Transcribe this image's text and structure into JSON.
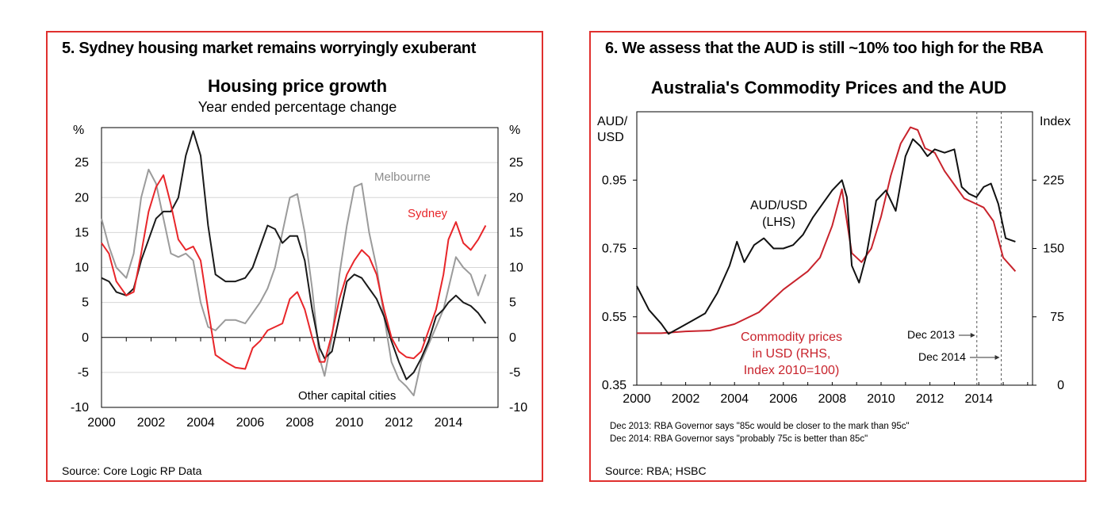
{
  "charts": [
    {
      "panel_title": "5. Sydney housing market remains worryingly exuberant",
      "source": "Source: Core Logic RP Data"
    },
    {
      "panel_title": "6. We assess that  the AUD is still ~10% too high for the RBA",
      "source": "Source: RBA; HSBC",
      "notes": [
        "Dec 2013:  RBA Governor says \"85c would be closer to the mark than 95c\"",
        "Dec 2014:  RBA Governor says \"probably 75c is better than 85c\""
      ]
    }
  ],
  "chart_data": [
    {
      "type": "line",
      "title": "Housing price growth",
      "subtitle": "Year ended percentage change",
      "ylabel_left": "%",
      "ylabel_right": "%",
      "ylim": [
        -10,
        30
      ],
      "yticks": [
        -10,
        -5,
        0,
        5,
        10,
        15,
        20,
        25
      ],
      "xlim": [
        2000,
        2016
      ],
      "xticks": [
        2000,
        2002,
        2004,
        2006,
        2008,
        2010,
        2012,
        2014
      ],
      "grid": true,
      "colors": {
        "Sydney": "#e8262a",
        "Melbourne": "#9b9b9b",
        "Other capital cities": "#1a1a1a"
      },
      "series": [
        {
          "name": "Sydney",
          "label": "Sydney",
          "color": "#e8262a",
          "x": [
            2000,
            2000.3,
            2000.6,
            2001,
            2001.3,
            2001.6,
            2001.9,
            2002.2,
            2002.5,
            2002.8,
            2003.1,
            2003.4,
            2003.7,
            2004,
            2004.3,
            2004.6,
            2005,
            2005.4,
            2005.8,
            2006.1,
            2006.4,
            2006.7,
            2007,
            2007.3,
            2007.6,
            2007.9,
            2008.2,
            2008.5,
            2008.8,
            2009,
            2009.3,
            2009.6,
            2009.9,
            2010.2,
            2010.5,
            2010.8,
            2011.1,
            2011.4,
            2011.7,
            2012,
            2012.3,
            2012.6,
            2012.9,
            2013.2,
            2013.5,
            2013.8,
            2014,
            2014.3,
            2014.6,
            2014.9,
            2015.2,
            2015.5
          ],
          "values": [
            13.5,
            12,
            8,
            6,
            6.5,
            12,
            18,
            21.5,
            23.2,
            19,
            14,
            12.5,
            13,
            11,
            4,
            -2.5,
            -3.5,
            -4.3,
            -4.5,
            -1.5,
            -0.5,
            1,
            1.5,
            2,
            5.5,
            6.5,
            4,
            0,
            -3.5,
            -3.5,
            0.5,
            5.5,
            9,
            11,
            12.5,
            11.5,
            9,
            4,
            0,
            -2,
            -2.8,
            -3,
            -2,
            1,
            4,
            9,
            14,
            16.5,
            13.5,
            12.5,
            14,
            16
          ]
        },
        {
          "name": "Melbourne",
          "label": "Melbourne",
          "color": "#9b9b9b",
          "x": [
            2000,
            2000.3,
            2000.6,
            2001,
            2001.3,
            2001.6,
            2001.9,
            2002.2,
            2002.5,
            2002.8,
            2003.1,
            2003.4,
            2003.7,
            2004,
            2004.3,
            2004.6,
            2005,
            2005.4,
            2005.8,
            2006.1,
            2006.4,
            2006.7,
            2007,
            2007.3,
            2007.6,
            2007.9,
            2008.2,
            2008.5,
            2008.8,
            2009,
            2009.3,
            2009.6,
            2009.9,
            2010.2,
            2010.5,
            2010.8,
            2011.1,
            2011.4,
            2011.7,
            2012,
            2012.3,
            2012.6,
            2012.9,
            2013.2,
            2013.5,
            2013.8,
            2014,
            2014.3,
            2014.6,
            2014.9,
            2015.2,
            2015.5
          ],
          "values": [
            17,
            13,
            10,
            8.5,
            12,
            20,
            24,
            22,
            17,
            12,
            11.5,
            12,
            11,
            5,
            1.5,
            1,
            2.5,
            2.5,
            2,
            3.5,
            5,
            7,
            10,
            15,
            20,
            20.5,
            15,
            7,
            -3,
            -5.5,
            0,
            9,
            16,
            21.5,
            22,
            15,
            10,
            3,
            -3.5,
            -6,
            -7,
            -8.3,
            -3.5,
            -1,
            1.5,
            4,
            7,
            11.5,
            10,
            9,
            6,
            9
          ]
        },
        {
          "name": "Other capital cities",
          "label": "Other capital cities",
          "color": "#1a1a1a",
          "x": [
            2000,
            2000.3,
            2000.6,
            2001,
            2001.3,
            2001.6,
            2001.9,
            2002.2,
            2002.5,
            2002.8,
            2003.1,
            2003.4,
            2003.7,
            2004,
            2004.3,
            2004.6,
            2005,
            2005.4,
            2005.8,
            2006.1,
            2006.4,
            2006.7,
            2007,
            2007.3,
            2007.6,
            2007.9,
            2008.2,
            2008.5,
            2008.8,
            2009,
            2009.3,
            2009.6,
            2009.9,
            2010.2,
            2010.5,
            2010.8,
            2011.1,
            2011.4,
            2011.7,
            2012,
            2012.3,
            2012.6,
            2012.9,
            2013.2,
            2013.5,
            2013.8,
            2014,
            2014.3,
            2014.6,
            2014.9,
            2015.2,
            2015.5
          ],
          "values": [
            8.5,
            8,
            6.5,
            6,
            7,
            11,
            14,
            17,
            18,
            18,
            20,
            26,
            29.5,
            26,
            16,
            9,
            8,
            8,
            8.5,
            10,
            13,
            16,
            15.5,
            13.5,
            14.5,
            14.5,
            11,
            4,
            -1.5,
            -3,
            -2,
            3,
            8,
            9,
            8.5,
            7,
            5.5,
            3,
            -0.5,
            -3.5,
            -6,
            -5,
            -3,
            -0.5,
            3,
            4,
            5,
            6,
            5,
            4.5,
            3.5,
            2
          ]
        }
      ]
    },
    {
      "type": "line",
      "title": "Australia's Commodity Prices and the AUD",
      "ylabel_left": "AUD/\nUSD",
      "ylabel_right": "Index",
      "ylim_left": [
        0.35,
        1.15
      ],
      "yticks_left": [
        0.35,
        0.55,
        0.75,
        0.95
      ],
      "ylim_right": [
        0,
        300
      ],
      "yticks_right": [
        0,
        75,
        150,
        225
      ],
      "xlim": [
        2000,
        2016.2
      ],
      "xticks": [
        2000,
        2002,
        2004,
        2006,
        2008,
        2010,
        2012,
        2014
      ],
      "grid": false,
      "annotations": [
        {
          "text": "Dec 2013",
          "x": 2013.92
        },
        {
          "text": "Dec 2014",
          "x": 2014.92
        }
      ],
      "series": [
        {
          "name": "AUD/USD",
          "label": "AUD/USD\n(LHS)",
          "axis": "left",
          "color": "#111111",
          "x": [
            2000,
            2000.5,
            2001,
            2001.3,
            2001.8,
            2002.3,
            2002.8,
            2003.3,
            2003.8,
            2004.1,
            2004.4,
            2004.8,
            2005.2,
            2005.6,
            2006,
            2006.4,
            2006.8,
            2007.2,
            2007.6,
            2008,
            2008.4,
            2008.6,
            2008.8,
            2009.1,
            2009.4,
            2009.8,
            2010.2,
            2010.6,
            2011,
            2011.3,
            2011.6,
            2011.9,
            2012.2,
            2012.6,
            2013,
            2013.3,
            2013.6,
            2013.9,
            2014.2,
            2014.5,
            2014.8,
            2015.1,
            2015.5
          ],
          "values": [
            0.64,
            0.57,
            0.53,
            0.5,
            0.52,
            0.54,
            0.56,
            0.62,
            0.7,
            0.77,
            0.71,
            0.76,
            0.78,
            0.75,
            0.75,
            0.76,
            0.79,
            0.84,
            0.88,
            0.92,
            0.95,
            0.9,
            0.7,
            0.65,
            0.73,
            0.89,
            0.92,
            0.86,
            1.02,
            1.07,
            1.05,
            1.02,
            1.04,
            1.03,
            1.04,
            0.93,
            0.91,
            0.9,
            0.93,
            0.94,
            0.88,
            0.78,
            0.77
          ]
        },
        {
          "name": "Commodity prices in USD",
          "label": "Commodity prices\nin USD (RHS,\nIndex 2010=100)",
          "axis": "right",
          "color": "#c8232c",
          "x": [
            2000,
            2001,
            2002,
            2003,
            2004,
            2005,
            2006,
            2007,
            2007.5,
            2008,
            2008.4,
            2008.8,
            2009.2,
            2009.6,
            2010,
            2010.4,
            2010.8,
            2011.2,
            2011.5,
            2011.8,
            2012.2,
            2012.6,
            2013,
            2013.4,
            2013.8,
            2014.2,
            2014.6,
            2015,
            2015.5
          ],
          "values": [
            57,
            57,
            59,
            60,
            67,
            80,
            105,
            125,
            140,
            175,
            215,
            145,
            135,
            150,
            185,
            230,
            265,
            283,
            280,
            260,
            255,
            235,
            220,
            205,
            200,
            195,
            180,
            140,
            125
          ]
        }
      ]
    }
  ]
}
